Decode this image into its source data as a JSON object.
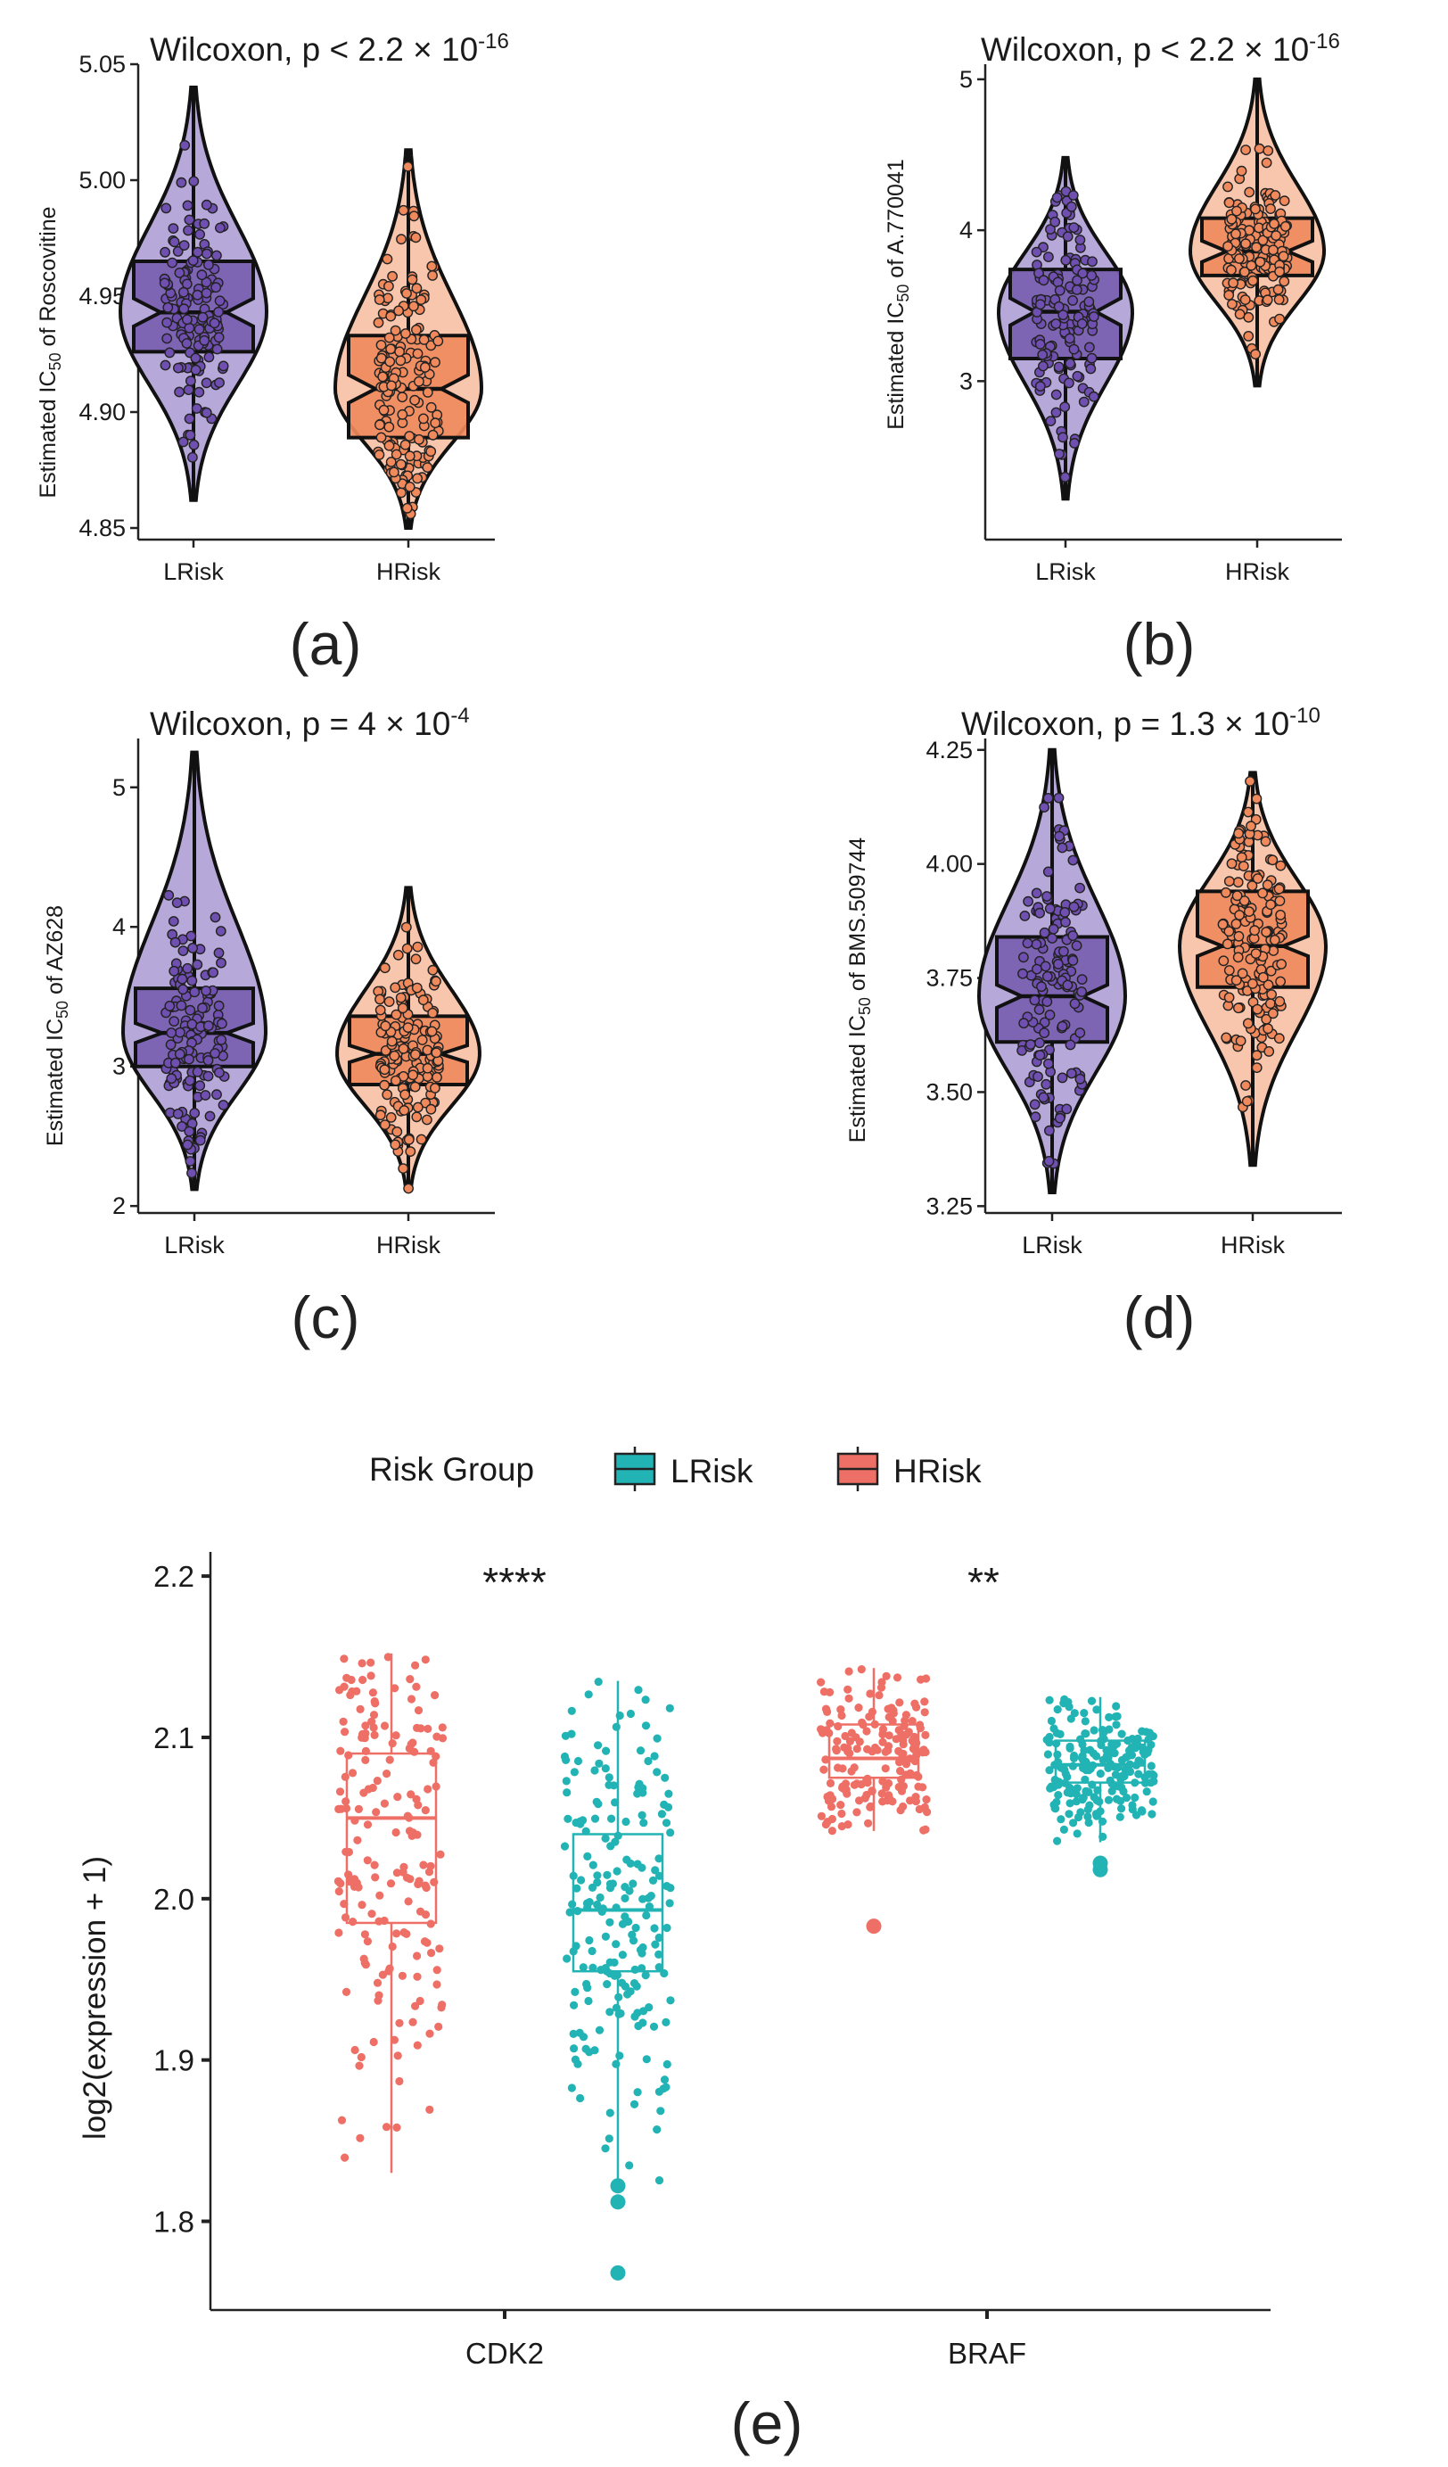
{
  "colors": {
    "lrisk_violin": "#b6a8d8",
    "lrisk_box": "#7a5fb0",
    "lrisk_point": "#6f4fb0",
    "hrisk_violin": "#f8c6ad",
    "hrisk_box": "#ef8a5c",
    "hrisk_point": "#f08a5c",
    "e_hrisk": "#ee6f66",
    "e_lrisk": "#22b3b5"
  },
  "panel_labels": [
    "(a)",
    "(b)",
    "(c)",
    "(d)",
    "(e)"
  ],
  "panels": [
    {
      "id": "a",
      "title_prefix": "Wilcoxon, p < 2.2 × 10",
      "title_exp": "-16",
      "ylabel_pre": "Estimated IC",
      "ylabel_sub": "50",
      "ylabel_post": " of Roscovitine"
    },
    {
      "id": "b",
      "title_prefix": "Wilcoxon, p < 2.2 × 10",
      "title_exp": "-16",
      "ylabel_pre": "Estimated IC",
      "ylabel_sub": "50",
      "ylabel_post": " of A.770041"
    },
    {
      "id": "c",
      "title_prefix": "Wilcoxon, p = 4 × 10",
      "title_exp": "-4",
      "ylabel_pre": "Estimated IC",
      "ylabel_sub": "50",
      "ylabel_post": " of AZ628"
    },
    {
      "id": "d",
      "title_prefix": "Wilcoxon, p = 1.3 × 10",
      "title_exp": "-10",
      "ylabel_pre": "Estimated IC",
      "ylabel_sub": "50",
      "ylabel_post": " of BMS.509744"
    }
  ],
  "legend": {
    "title": "Risk Group",
    "items": [
      "LRisk",
      "HRisk"
    ]
  },
  "panel_e": {
    "ylabel": "log2(expression + 1)",
    "significance": [
      "****",
      "**"
    ]
  },
  "chart_data": [
    {
      "type": "violin",
      "panel": "a",
      "title": "Wilcoxon, p < 2.2 × 10^-16",
      "ylabel": "Estimated IC50 of Roscovitine",
      "categories": [
        "LRisk",
        "HRisk"
      ],
      "ylim": [
        4.845,
        5.05
      ],
      "yticks": [
        4.85,
        4.9,
        4.95,
        5.0,
        5.05
      ],
      "ytick_labels": [
        "4.85",
        "4.90",
        "4.95",
        "5.00",
        "5.05"
      ],
      "series": [
        {
          "name": "LRisk",
          "min": 4.862,
          "q1": 4.926,
          "median": 4.943,
          "q3": 4.965,
          "max": 5.04,
          "notch": 0.006,
          "mode": 4.943,
          "n": 140
        },
        {
          "name": "HRisk",
          "min": 4.85,
          "q1": 4.889,
          "median": 4.91,
          "q3": 4.933,
          "max": 5.013,
          "notch": 0.006,
          "mode": 4.91,
          "n": 160
        }
      ]
    },
    {
      "type": "violin",
      "panel": "b",
      "title": "Wilcoxon, p < 2.2 × 10^-16",
      "ylabel": "Estimated IC50 of A.770041",
      "categories": [
        "LRisk",
        "HRisk"
      ],
      "ylim": [
        1.95,
        5.1
      ],
      "yticks": [
        3,
        4,
        5
      ],
      "ytick_labels": [
        "3",
        "4",
        "5"
      ],
      "series": [
        {
          "name": "LRisk",
          "min": 2.22,
          "q1": 3.15,
          "median": 3.46,
          "q3": 3.74,
          "max": 4.48,
          "notch": 0.09,
          "mode": 3.46,
          "n": 140
        },
        {
          "name": "HRisk",
          "min": 2.97,
          "q1": 3.7,
          "median": 3.86,
          "q3": 4.08,
          "max": 5.0,
          "notch": 0.07,
          "mode": 3.86,
          "n": 160
        }
      ]
    },
    {
      "type": "violin",
      "panel": "c",
      "title": "Wilcoxon, p = 4 × 10^-4",
      "ylabel": "Estimated IC50 of AZ628",
      "categories": [
        "LRisk",
        "HRisk"
      ],
      "ylim": [
        1.95,
        5.35
      ],
      "yticks": [
        2,
        3,
        4,
        5
      ],
      "ytick_labels": [
        "2",
        "3",
        "4",
        "5"
      ],
      "series": [
        {
          "name": "LRisk",
          "min": 2.12,
          "q1": 3.0,
          "median": 3.24,
          "q3": 3.56,
          "max": 5.25,
          "notch": 0.07,
          "mode": 3.24,
          "n": 140
        },
        {
          "name": "HRisk",
          "min": 2.12,
          "q1": 2.87,
          "median": 3.09,
          "q3": 3.36,
          "max": 4.28,
          "notch": 0.06,
          "mode": 3.09,
          "n": 160
        }
      ]
    },
    {
      "type": "violin",
      "panel": "d",
      "title": "Wilcoxon, p = 1.3 × 10^-10",
      "ylabel": "Estimated IC50 of BMS.509744",
      "categories": [
        "LRisk",
        "HRisk"
      ],
      "ylim": [
        3.235,
        4.275
      ],
      "yticks": [
        3.25,
        3.5,
        3.75,
        4.0,
        4.25
      ],
      "ytick_labels": [
        "3.25",
        "3.50",
        "3.75",
        "4.00",
        "4.25"
      ],
      "series": [
        {
          "name": "LRisk",
          "min": 3.28,
          "q1": 3.61,
          "median": 3.71,
          "q3": 3.84,
          "max": 4.25,
          "notch": 0.025,
          "mode": 3.71,
          "n": 140
        },
        {
          "name": "HRisk",
          "min": 3.34,
          "q1": 3.73,
          "median": 3.82,
          "q3": 3.94,
          "max": 4.2,
          "notch": 0.022,
          "mode": 3.82,
          "n": 160
        }
      ]
    },
    {
      "type": "box_jitter",
      "panel": "e",
      "ylabel": "log2(expression + 1)",
      "categories": [
        "CDK2",
        "BRAF"
      ],
      "legend_title": "Risk Group",
      "ylim": [
        1.745,
        2.215
      ],
      "yticks": [
        1.8,
        1.9,
        2.0,
        2.1,
        2.2
      ],
      "ytick_labels": [
        "1.8",
        "1.9",
        "2.0",
        "2.1",
        "2.2"
      ],
      "significance": [
        "****",
        "**"
      ],
      "series": [
        {
          "name": "HRisk",
          "group": "CDK2",
          "min": 1.83,
          "q1": 1.985,
          "median": 2.05,
          "q3": 2.09,
          "max": 2.152,
          "outliers": [],
          "n": 180
        },
        {
          "name": "LRisk",
          "group": "CDK2",
          "min": 1.822,
          "q1": 1.955,
          "median": 1.993,
          "q3": 2.04,
          "max": 2.135,
          "outliers": [
            1.822,
            1.812,
            1.768
          ],
          "n": 200
        },
        {
          "name": "HRisk",
          "group": "BRAF",
          "min": 2.042,
          "q1": 2.075,
          "median": 2.087,
          "q3": 2.108,
          "max": 2.143,
          "outliers": [
            1.983
          ],
          "n": 180
        },
        {
          "name": "LRisk",
          "group": "BRAF",
          "min": 2.035,
          "q1": 2.072,
          "median": 2.083,
          "q3": 2.098,
          "max": 2.125,
          "outliers": [
            2.022,
            2.018
          ],
          "n": 200
        }
      ]
    }
  ]
}
